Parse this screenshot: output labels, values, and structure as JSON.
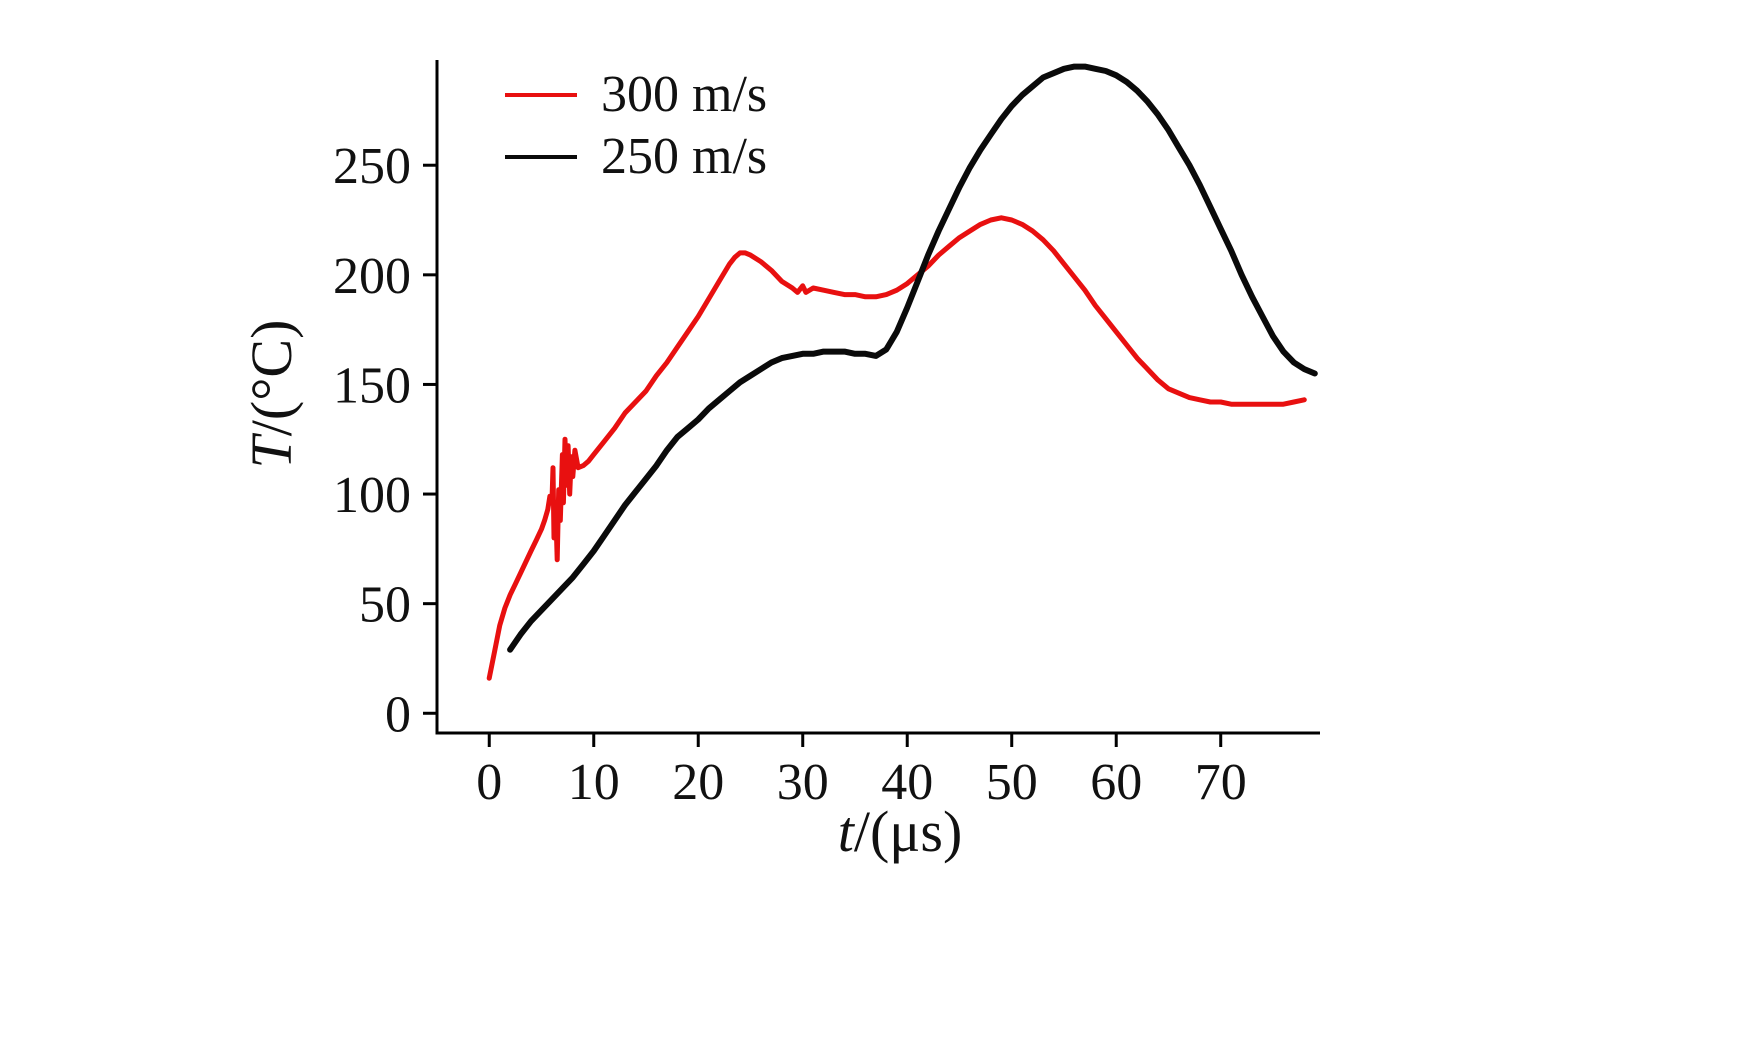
{
  "figure": {
    "background": "#ffffff",
    "y_axis": {
      "variable": "T",
      "rest": "/(°C)"
    },
    "x_axis": {
      "variable": "t",
      "rest": "/(μs)"
    },
    "legend": [
      {
        "label": "300 m/s",
        "color": "#e81010"
      },
      {
        "label": "250 m/s",
        "color": "#0a0a0a"
      }
    ]
  },
  "chart_data": {
    "type": "line",
    "title": "",
    "xlabel": "t/(μs)",
    "ylabel": "T/(°C)",
    "xlim": [
      -5,
      79.5
    ],
    "ylim": [
      -9,
      298
    ],
    "x_ticks": [
      0,
      10,
      20,
      30,
      40,
      50,
      60,
      70
    ],
    "y_ticks": [
      0,
      50,
      100,
      150,
      200,
      250
    ],
    "grid": false,
    "legend_position": "top-left",
    "series": [
      {
        "name": "300 m/s",
        "color": "#e81010",
        "stroke_width": 5,
        "points": [
          [
            0,
            16
          ],
          [
            0.5,
            28
          ],
          [
            1,
            40
          ],
          [
            1.5,
            48
          ],
          [
            2,
            54
          ],
          [
            2.5,
            59
          ],
          [
            3,
            64
          ],
          [
            3.5,
            69
          ],
          [
            4,
            74
          ],
          [
            4.5,
            79
          ],
          [
            5,
            84
          ],
          [
            5.3,
            88
          ],
          [
            5.6,
            93
          ],
          [
            5.8,
            99
          ],
          [
            6,
            96
          ],
          [
            6.1,
            112
          ],
          [
            6.2,
            80
          ],
          [
            6.35,
            96
          ],
          [
            6.5,
            70
          ],
          [
            6.65,
            102
          ],
          [
            6.8,
            88
          ],
          [
            7,
            118
          ],
          [
            7.1,
            96
          ],
          [
            7.25,
            125
          ],
          [
            7.4,
            104
          ],
          [
            7.55,
            122
          ],
          [
            7.7,
            100
          ],
          [
            7.85,
            117
          ],
          [
            8,
            108
          ],
          [
            8.2,
            120
          ],
          [
            8.5,
            112
          ],
          [
            9,
            113
          ],
          [
            9.5,
            115
          ],
          [
            10,
            118
          ],
          [
            11,
            124
          ],
          [
            12,
            130
          ],
          [
            13,
            137
          ],
          [
            14,
            142
          ],
          [
            15,
            147
          ],
          [
            16,
            154
          ],
          [
            17,
            160
          ],
          [
            18,
            167
          ],
          [
            19,
            174
          ],
          [
            20,
            181
          ],
          [
            21,
            189
          ],
          [
            22,
            197
          ],
          [
            23,
            205
          ],
          [
            23.5,
            208
          ],
          [
            24,
            210
          ],
          [
            24.5,
            210
          ],
          [
            25,
            209
          ],
          [
            26,
            206
          ],
          [
            27,
            202
          ],
          [
            28,
            197
          ],
          [
            29,
            194
          ],
          [
            29.5,
            192
          ],
          [
            30,
            195
          ],
          [
            30.3,
            192
          ],
          [
            31,
            194
          ],
          [
            32,
            193
          ],
          [
            33,
            192
          ],
          [
            34,
            191
          ],
          [
            35,
            191
          ],
          [
            36,
            190
          ],
          [
            37,
            190
          ],
          [
            38,
            191
          ],
          [
            39,
            193
          ],
          [
            40,
            196
          ],
          [
            41,
            200
          ],
          [
            42,
            204
          ],
          [
            43,
            209
          ],
          [
            44,
            213
          ],
          [
            45,
            217
          ],
          [
            46,
            220
          ],
          [
            47,
            223
          ],
          [
            48,
            225
          ],
          [
            49,
            226
          ],
          [
            50,
            225
          ],
          [
            51,
            223
          ],
          [
            52,
            220
          ],
          [
            53,
            216
          ],
          [
            54,
            211
          ],
          [
            55,
            205
          ],
          [
            56,
            199
          ],
          [
            57,
            193
          ],
          [
            58,
            186
          ],
          [
            59,
            180
          ],
          [
            60,
            174
          ],
          [
            61,
            168
          ],
          [
            62,
            162
          ],
          [
            63,
            157
          ],
          [
            64,
            152
          ],
          [
            65,
            148
          ],
          [
            66,
            146
          ],
          [
            67,
            144
          ],
          [
            68,
            143
          ],
          [
            69,
            142
          ],
          [
            70,
            142
          ],
          [
            71,
            141
          ],
          [
            72,
            141
          ],
          [
            73,
            141
          ],
          [
            74,
            141
          ],
          [
            75,
            141
          ],
          [
            76,
            141
          ],
          [
            77,
            142
          ],
          [
            78,
            143
          ]
        ]
      },
      {
        "name": "250 m/s",
        "color": "#0a0a0a",
        "stroke_width": 6,
        "points": [
          [
            2,
            29
          ],
          [
            3,
            36
          ],
          [
            4,
            42
          ],
          [
            5,
            47
          ],
          [
            6,
            52
          ],
          [
            7,
            57
          ],
          [
            8,
            62
          ],
          [
            9,
            68
          ],
          [
            10,
            74
          ],
          [
            11,
            81
          ],
          [
            12,
            88
          ],
          [
            13,
            95
          ],
          [
            14,
            101
          ],
          [
            15,
            107
          ],
          [
            16,
            113
          ],
          [
            17,
            120
          ],
          [
            18,
            126
          ],
          [
            19,
            130
          ],
          [
            20,
            134
          ],
          [
            21,
            139
          ],
          [
            22,
            143
          ],
          [
            23,
            147
          ],
          [
            24,
            151
          ],
          [
            25,
            154
          ],
          [
            26,
            157
          ],
          [
            27,
            160
          ],
          [
            28,
            162
          ],
          [
            29,
            163
          ],
          [
            30,
            164
          ],
          [
            31,
            164
          ],
          [
            32,
            165
          ],
          [
            33,
            165
          ],
          [
            34,
            165
          ],
          [
            35,
            164
          ],
          [
            36,
            164
          ],
          [
            37,
            163
          ],
          [
            38,
            166
          ],
          [
            39,
            174
          ],
          [
            40,
            185
          ],
          [
            41,
            197
          ],
          [
            42,
            209
          ],
          [
            43,
            220
          ],
          [
            44,
            230
          ],
          [
            45,
            240
          ],
          [
            46,
            249
          ],
          [
            47,
            257
          ],
          [
            48,
            264
          ],
          [
            49,
            271
          ],
          [
            50,
            277
          ],
          [
            51,
            282
          ],
          [
            52,
            286
          ],
          [
            53,
            290
          ],
          [
            54,
            292
          ],
          [
            55,
            294
          ],
          [
            56,
            295
          ],
          [
            57,
            295
          ],
          [
            58,
            294
          ],
          [
            59,
            293
          ],
          [
            60,
            291
          ],
          [
            61,
            288
          ],
          [
            62,
            284
          ],
          [
            63,
            279
          ],
          [
            64,
            273
          ],
          [
            65,
            266
          ],
          [
            66,
            258
          ],
          [
            67,
            250
          ],
          [
            68,
            241
          ],
          [
            69,
            231
          ],
          [
            70,
            221
          ],
          [
            71,
            211
          ],
          [
            72,
            200
          ],
          [
            73,
            190
          ],
          [
            74,
            181
          ],
          [
            75,
            172
          ],
          [
            76,
            165
          ],
          [
            77,
            160
          ],
          [
            78,
            157
          ],
          [
            79,
            155
          ]
        ]
      }
    ]
  }
}
